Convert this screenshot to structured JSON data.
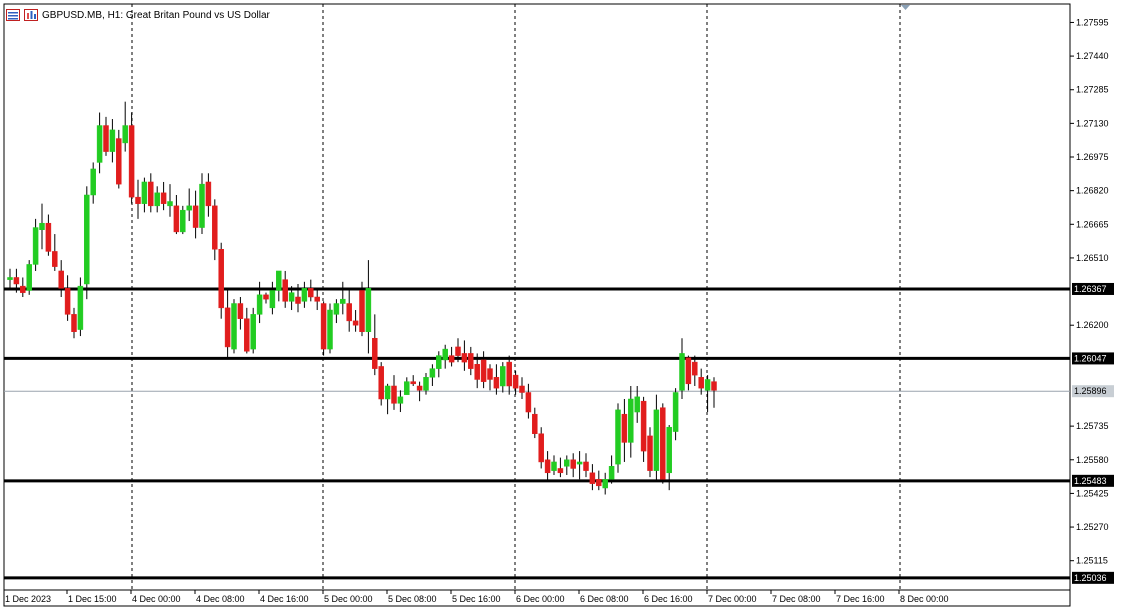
{
  "header": {
    "symbol": "GBPUSD.MB",
    "timeframe": "H1",
    "description": "Great Britan Pound vs US Dollar",
    "title_text": "GBPUSD.MB, H1:  Great Britan Pound vs US Dollar"
  },
  "colors": {
    "bull": "#22cc22",
    "bear": "#e11d1d",
    "level_line": "#000000",
    "grid": "#000000",
    "bid_line": "#9aa4ad",
    "bid_label_bg": "#c8ced4"
  },
  "icons": [
    "window-list-icon",
    "chart-type-icon"
  ],
  "chart_data": {
    "type": "candlestick",
    "y_range": [
      1.2498,
      1.2768
    ],
    "y_ticks": [
      "1.27595",
      "1.27440",
      "1.27285",
      "1.27130",
      "1.26975",
      "1.26820",
      "1.26665",
      "1.26510",
      "1.26200",
      "1.25735",
      "1.25580",
      "1.25425",
      "1.25270",
      "1.25115"
    ],
    "x_labels": [
      "1 Dec 2023",
      "1 Dec 15:00",
      "4 Dec 00:00",
      "4 Dec 08:00",
      "4 Dec 16:00",
      "5 Dec 00:00",
      "5 Dec 08:00",
      "5 Dec 16:00",
      "6 Dec 00:00",
      "6 Dec 08:00",
      "6 Dec 16:00",
      "7 Dec 00:00",
      "7 Dec 08:00",
      "7 Dec 16:00",
      "8 Dec 00:00"
    ],
    "session_separators": [
      "4 Dec 00:00",
      "5 Dec 00:00",
      "6 Dec 00:00",
      "7 Dec 00:00",
      "8 Dec 00:00"
    ],
    "levels": [
      {
        "price": 1.26367,
        "label": "1.26367"
      },
      {
        "price": 1.26047,
        "label": "1.26047"
      },
      {
        "price": 1.25483,
        "label": "1.25483"
      },
      {
        "price": 1.25036,
        "label": "1.25036"
      }
    ],
    "bid": {
      "price": 1.25896,
      "label": "1.25896"
    },
    "candles": [
      [
        1.2641,
        1.2646,
        1.2637,
        1.2642
      ],
      [
        1.2642,
        1.2646,
        1.2635,
        1.2639
      ],
      [
        1.2638,
        1.2642,
        1.2633,
        1.2635
      ],
      [
        1.2636,
        1.265,
        1.2634,
        1.2648
      ],
      [
        1.2648,
        1.2669,
        1.2645,
        1.2665
      ],
      [
        1.2664,
        1.2676,
        1.2655,
        1.2667
      ],
      [
        1.2667,
        1.2671,
        1.2652,
        1.2654
      ],
      [
        1.2654,
        1.2662,
        1.2645,
        1.2647
      ],
      [
        1.2645,
        1.265,
        1.2633,
        1.2637
      ],
      [
        1.2637,
        1.2643,
        1.2622,
        1.2625
      ],
      [
        1.2625,
        1.2628,
        1.2614,
        1.2617
      ],
      [
        1.2618,
        1.2642,
        1.2615,
        1.2638
      ],
      [
        1.2639,
        1.2684,
        1.2632,
        1.268
      ],
      [
        1.268,
        1.2695,
        1.2676,
        1.2692
      ],
      [
        1.2695,
        1.2718,
        1.269,
        1.2712
      ],
      [
        1.2712,
        1.2716,
        1.2698,
        1.27
      ],
      [
        1.27,
        1.2715,
        1.2695,
        1.271
      ],
      [
        1.2706,
        1.271,
        1.2683,
        1.2685
      ],
      [
        1.2704,
        1.2723,
        1.27,
        1.2712
      ],
      [
        1.2712,
        1.2718,
        1.2676,
        1.2679
      ],
      [
        1.2679,
        1.2687,
        1.2669,
        1.2676
      ],
      [
        1.2676,
        1.2688,
        1.2672,
        1.2686
      ],
      [
        1.2686,
        1.269,
        1.2672,
        1.2675
      ],
      [
        1.2675,
        1.2684,
        1.2672,
        1.2681
      ],
      [
        1.2681,
        1.2686,
        1.2673,
        1.2676
      ],
      [
        1.2675,
        1.2685,
        1.267,
        1.2677
      ],
      [
        1.2675,
        1.268,
        1.2662,
        1.2663
      ],
      [
        1.2663,
        1.2675,
        1.2662,
        1.2673
      ],
      [
        1.2673,
        1.2683,
        1.2668,
        1.2675
      ],
      [
        1.2675,
        1.2682,
        1.266,
        1.2665
      ],
      [
        1.2665,
        1.269,
        1.2662,
        1.2685
      ],
      [
        1.2686,
        1.269,
        1.267,
        1.2675
      ],
      [
        1.2675,
        1.2678,
        1.265,
        1.2655
      ],
      [
        1.2655,
        1.2658,
        1.2623,
        1.2628
      ],
      [
        1.2628,
        1.2637,
        1.2605,
        1.261
      ],
      [
        1.2609,
        1.2632,
        1.2607,
        1.263
      ],
      [
        1.263,
        1.2633,
        1.2618,
        1.2623
      ],
      [
        1.2623,
        1.2628,
        1.2607,
        1.2608
      ],
      [
        1.2609,
        1.2628,
        1.2607,
        1.2625
      ],
      [
        1.2625,
        1.264,
        1.2621,
        1.2634
      ],
      [
        1.2634,
        1.2635,
        1.263,
        1.2632
      ],
      [
        1.2628,
        1.264,
        1.2625,
        1.2636
      ],
      [
        1.2636,
        1.2644,
        1.2631,
        1.2645
      ],
      [
        1.2641,
        1.2645,
        1.2628,
        1.2631
      ],
      [
        1.2631,
        1.2638,
        1.2627,
        1.2635
      ],
      [
        1.2633,
        1.2639,
        1.2626,
        1.263
      ],
      [
        1.2631,
        1.264,
        1.2628,
        1.2637
      ],
      [
        1.2637,
        1.2641,
        1.2631,
        1.2633
      ],
      [
        1.2633,
        1.2637,
        1.2627,
        1.2631
      ],
      [
        1.263,
        1.2631,
        1.2606,
        1.2609
      ],
      [
        1.2609,
        1.263,
        1.2607,
        1.2627
      ],
      [
        1.2625,
        1.2632,
        1.2621,
        1.263
      ],
      [
        1.263,
        1.264,
        1.2625,
        1.2632
      ],
      [
        1.263,
        1.2636,
        1.2617,
        1.2622
      ],
      [
        1.2622,
        1.2627,
        1.2617,
        1.262
      ],
      [
        1.2636,
        1.264,
        1.2615,
        1.2617
      ],
      [
        1.2617,
        1.265,
        1.2607,
        1.2637
      ],
      [
        1.2614,
        1.2625,
        1.2597,
        1.26
      ],
      [
        1.2601,
        1.2603,
        1.2583,
        1.2586
      ],
      [
        1.2586,
        1.2593,
        1.2579,
        1.2592
      ],
      [
        1.2592,
        1.2597,
        1.2581,
        1.2584
      ],
      [
        1.2584,
        1.259,
        1.258,
        1.2587
      ],
      [
        1.2588,
        1.2596,
        1.2588,
        1.2594
      ],
      [
        1.2594,
        1.2597,
        1.2592,
        1.2593
      ],
      [
        1.2592,
        1.2594,
        1.2585,
        1.259
      ],
      [
        1.259,
        1.2598,
        1.2588,
        1.2596
      ],
      [
        1.2596,
        1.2602,
        1.2592,
        1.26
      ],
      [
        1.26,
        1.2608,
        1.2596,
        1.2606
      ],
      [
        1.2604,
        1.2611,
        1.26,
        1.2609
      ],
      [
        1.2606,
        1.261,
        1.2601,
        1.2603
      ],
      [
        1.261,
        1.2614,
        1.2603,
        1.2606
      ],
      [
        1.2607,
        1.2613,
        1.2599,
        1.2603
      ],
      [
        1.2607,
        1.261,
        1.2597,
        1.26
      ],
      [
        1.2602,
        1.2607,
        1.2591,
        1.2595
      ],
      [
        1.2604,
        1.2608,
        1.2591,
        1.2594
      ],
      [
        1.26,
        1.2602,
        1.259,
        1.2595
      ],
      [
        1.2596,
        1.2602,
        1.2588,
        1.2591
      ],
      [
        1.2592,
        1.2603,
        1.2589,
        1.2601
      ],
      [
        1.2603,
        1.2606,
        1.2588,
        1.2592
      ],
      [
        1.2597,
        1.2599,
        1.2588,
        1.2591
      ],
      [
        1.2592,
        1.2596,
        1.2586,
        1.2589
      ],
      [
        1.2589,
        1.2593,
        1.2577,
        1.258
      ],
      [
        1.2579,
        1.2582,
        1.2568,
        1.257
      ],
      [
        1.257,
        1.2573,
        1.2554,
        1.2557
      ],
      [
        1.2558,
        1.2562,
        1.2548,
        1.2552
      ],
      [
        1.2553,
        1.256,
        1.2551,
        1.2557
      ],
      [
        1.2554,
        1.2559,
        1.255,
        1.2552
      ],
      [
        1.2555,
        1.256,
        1.2551,
        1.2558
      ],
      [
        1.2558,
        1.2561,
        1.255,
        1.2554
      ],
      [
        1.2556,
        1.2562,
        1.2549,
        1.2557
      ],
      [
        1.2557,
        1.2561,
        1.255,
        1.2553
      ],
      [
        1.2552,
        1.2556,
        1.2544,
        1.2547
      ],
      [
        1.2549,
        1.2553,
        1.2544,
        1.2546
      ],
      [
        1.2545,
        1.2552,
        1.2542,
        1.2549
      ],
      [
        1.2549,
        1.256,
        1.2547,
        1.2555
      ],
      [
        1.2556,
        1.2584,
        1.2552,
        1.2581
      ],
      [
        1.2579,
        1.2586,
        1.2557,
        1.2566
      ],
      [
        1.2566,
        1.2592,
        1.2559,
        1.2586
      ],
      [
        1.258,
        1.2592,
        1.2575,
        1.2587
      ],
      [
        1.2585,
        1.2587,
        1.2557,
        1.2562
      ],
      [
        1.2569,
        1.2573,
        1.255,
        1.2553
      ],
      [
        1.2553,
        1.2588,
        1.2548,
        1.2581
      ],
      [
        1.2582,
        1.2584,
        1.2547,
        1.2549
      ],
      [
        1.2552,
        1.2574,
        1.2544,
        1.2573
      ],
      [
        1.2571,
        1.2591,
        1.2567,
        1.2589
      ],
      [
        1.259,
        1.2614,
        1.2586,
        1.2607
      ],
      [
        1.2605,
        1.2606,
        1.259,
        1.2593
      ],
      [
        1.2603,
        1.2606,
        1.2592,
        1.2597
      ],
      [
        1.2596,
        1.26,
        1.2588,
        1.2591
      ],
      [
        1.259,
        1.2597,
        1.258,
        1.2595
      ],
      [
        1.2594,
        1.2596,
        1.2582,
        1.259
      ]
    ]
  }
}
